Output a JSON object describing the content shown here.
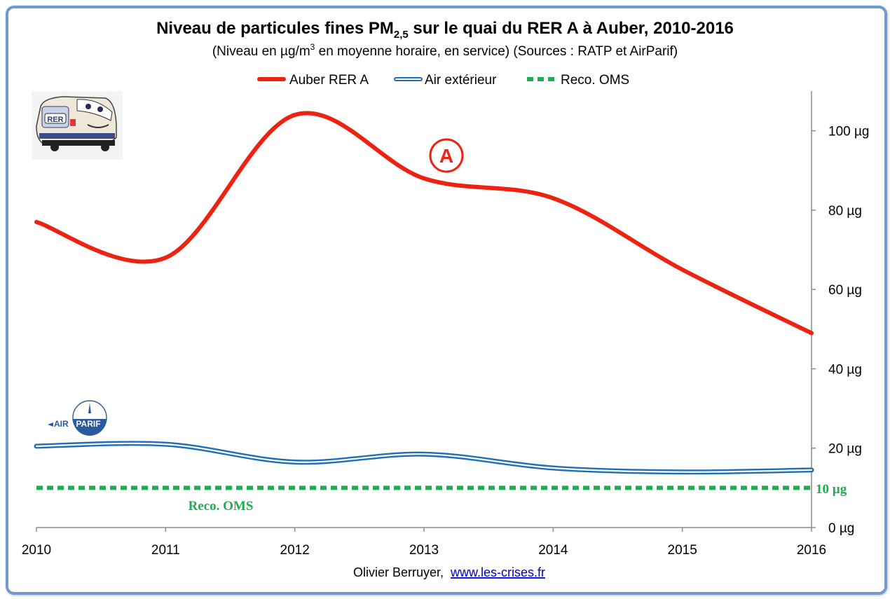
{
  "chart_data": {
    "type": "line",
    "title": {
      "before_sub": "Niveau de particules fines PM",
      "subscript": "2,5",
      "after_sub": " sur le quai du RER A à Auber, 2010-2016"
    },
    "subtitle": {
      "before_sup": "(Niveau en µg/m",
      "superscript": "3",
      "after_sup": " en moyenne horaire, en service) (Sources : RATP et AirParif)"
    },
    "x": [
      2010,
      2011,
      2012,
      2013,
      2014,
      2015,
      2016
    ],
    "x_tick_labels": [
      "2010",
      "2011",
      "2012",
      "2013",
      "2014",
      "2015",
      "2016"
    ],
    "xlim": [
      2010,
      2016
    ],
    "ylim": [
      0,
      110
    ],
    "y_ticks": [
      0,
      20,
      40,
      60,
      80,
      100
    ],
    "y_tick_labels": [
      "0 µg",
      "20 µg",
      "40 µg",
      "60 µg",
      "80 µg",
      "100 µg"
    ],
    "y_axis_side": "right",
    "grid": false,
    "legend_position": "top-center",
    "series": [
      {
        "name": "Auber RER A",
        "values": [
          77,
          68,
          104,
          88,
          83,
          65,
          49
        ],
        "color": "#ee2211",
        "style": "solid"
      },
      {
        "name": "Air extérieur",
        "values": [
          20.5,
          21,
          16.5,
          18.5,
          15,
          14,
          14.5
        ],
        "color": "#1f6fb5",
        "style": "double"
      },
      {
        "name": "Reco. OMS",
        "values": [
          10,
          10,
          10,
          10,
          10,
          10,
          10
        ],
        "color": "#1fad4f",
        "style": "dashed"
      }
    ],
    "annotations": {
      "circle_letter": "A",
      "reco_label": "Reco. OMS",
      "reco_value_label": "10 µg",
      "airparif_logo": "AIRPARIF"
    },
    "footer": {
      "author": "Olivier Berruyer,",
      "link": "www.les-crises.fr"
    }
  },
  "images": {
    "rer_train": "rer-train-cartoon",
    "airparif": "airparif-logo"
  }
}
